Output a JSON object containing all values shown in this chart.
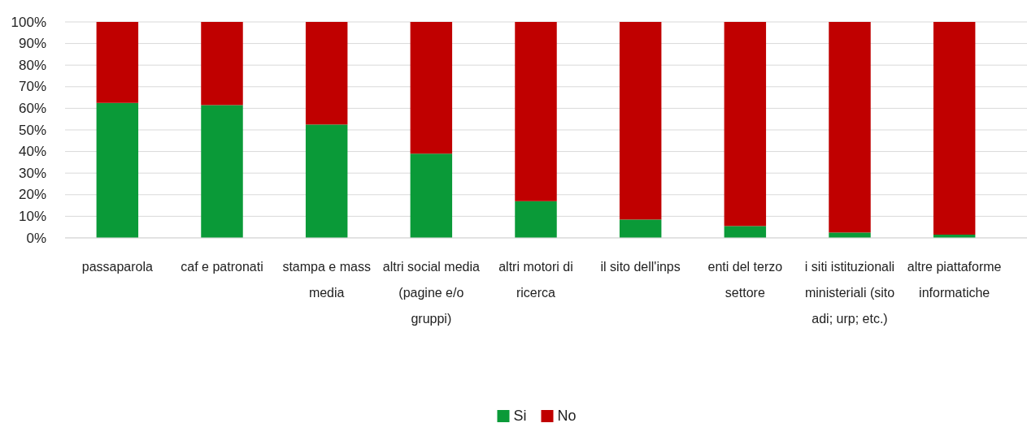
{
  "chart_data": {
    "type": "bar",
    "stacked": true,
    "categories": [
      "passaparola",
      "caf e patronati",
      "stampa e mass media",
      "altri social media (pagine e/o gruppi)",
      "altri motori di ricerca",
      "il sito dell'inps",
      "enti del terzo settore",
      "i siti istituzionali ministeriali (sito adi; urp; etc.)",
      "altre piattaforme informatiche"
    ],
    "series": [
      {
        "name": "Si",
        "color": "#0a9a38",
        "values": [
          62.5,
          61.5,
          52.5,
          39,
          17,
          8.5,
          5.5,
          2.5,
          1.5
        ]
      },
      {
        "name": "No",
        "color": "#c00000",
        "values": [
          37.5,
          38.5,
          47.5,
          61,
          83,
          91.5,
          94.5,
          97.5,
          98.5
        ]
      }
    ],
    "ylim": [
      0,
      100
    ],
    "yticks": [
      {
        "value": 0,
        "label": "0%"
      },
      {
        "value": 10,
        "label": "10%"
      },
      {
        "value": 20,
        "label": "20%"
      },
      {
        "value": 30,
        "label": "30%"
      },
      {
        "value": 40,
        "label": "40%"
      },
      {
        "value": 50,
        "label": "50%"
      },
      {
        "value": 60,
        "label": "60%"
      },
      {
        "value": 70,
        "label": "70%"
      },
      {
        "value": 80,
        "label": "80%"
      },
      {
        "value": 90,
        "label": "90%"
      },
      {
        "value": 100,
        "label": "100%"
      }
    ],
    "grid": "y",
    "legend": "bottom"
  }
}
